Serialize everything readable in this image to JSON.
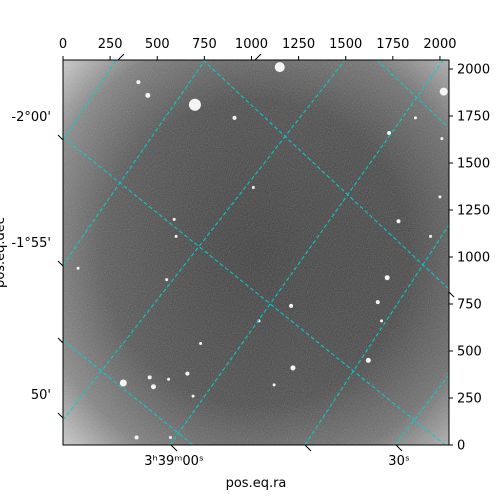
{
  "chart_data": {
    "type": "image",
    "xlabel": "pos.eq.ra",
    "ylabel": "pos.eq.dec",
    "top_axis": {
      "ticks": [
        0,
        250,
        500,
        750,
        1000,
        1250,
        1500,
        1750,
        2000
      ],
      "xlim": [
        0,
        2048
      ]
    },
    "right_axis": {
      "ticks": [
        0,
        250,
        500,
        750,
        1000,
        1250,
        1500,
        1750,
        2000
      ],
      "ylim": [
        0,
        2048
      ]
    },
    "ra_ticks": [
      "3ʰ39ᵐ00ˢ",
      "30ˢ"
    ],
    "dec_ticks": [
      "-2°00'",
      "-1°55'",
      "50'"
    ],
    "grid": true,
    "grid_color": "#00d0d0",
    "colormap": "gray",
    "stars": [
      {
        "x": 1150,
        "y": 2010,
        "r": 5
      },
      {
        "x": 700,
        "y": 1810,
        "r": 6
      },
      {
        "x": 2020,
        "y": 1880,
        "r": 4
      },
      {
        "x": 450,
        "y": 1860,
        "r": 2.5
      },
      {
        "x": 400,
        "y": 1930,
        "r": 2
      },
      {
        "x": 910,
        "y": 1740,
        "r": 2
      },
      {
        "x": 1730,
        "y": 1660,
        "r": 2
      },
      {
        "x": 1870,
        "y": 1740,
        "r": 1.5
      },
      {
        "x": 2010,
        "y": 1630,
        "r": 1.5
      },
      {
        "x": 2000,
        "y": 1320,
        "r": 1.5
      },
      {
        "x": 1780,
        "y": 1190,
        "r": 2
      },
      {
        "x": 1950,
        "y": 1110,
        "r": 1.5
      },
      {
        "x": 1720,
        "y": 890,
        "r": 2.5
      },
      {
        "x": 1670,
        "y": 760,
        "r": 2
      },
      {
        "x": 1210,
        "y": 740,
        "r": 2
      },
      {
        "x": 1040,
        "y": 660,
        "r": 1.5
      },
      {
        "x": 1620,
        "y": 450,
        "r": 2.5
      },
      {
        "x": 1220,
        "y": 410,
        "r": 2.5
      },
      {
        "x": 730,
        "y": 540,
        "r": 1.5
      },
      {
        "x": 660,
        "y": 380,
        "r": 2
      },
      {
        "x": 560,
        "y": 350,
        "r": 1.5
      },
      {
        "x": 460,
        "y": 360,
        "r": 2
      },
      {
        "x": 480,
        "y": 310,
        "r": 2.5
      },
      {
        "x": 320,
        "y": 330,
        "r": 3.5
      },
      {
        "x": 690,
        "y": 260,
        "r": 1.5
      },
      {
        "x": 1120,
        "y": 320,
        "r": 1.5
      },
      {
        "x": 390,
        "y": 40,
        "r": 2
      },
      {
        "x": 570,
        "y": 40,
        "r": 1.5
      },
      {
        "x": 600,
        "y": 1110,
        "r": 1.5
      },
      {
        "x": 590,
        "y": 1200,
        "r": 1.5
      },
      {
        "x": 550,
        "y": 880,
        "r": 1.5
      },
      {
        "x": 1010,
        "y": 1370,
        "r": 1.5
      },
      {
        "x": 80,
        "y": 940,
        "r": 1.5
      },
      {
        "x": 1690,
        "y": 660,
        "r": 1.5
      }
    ]
  }
}
